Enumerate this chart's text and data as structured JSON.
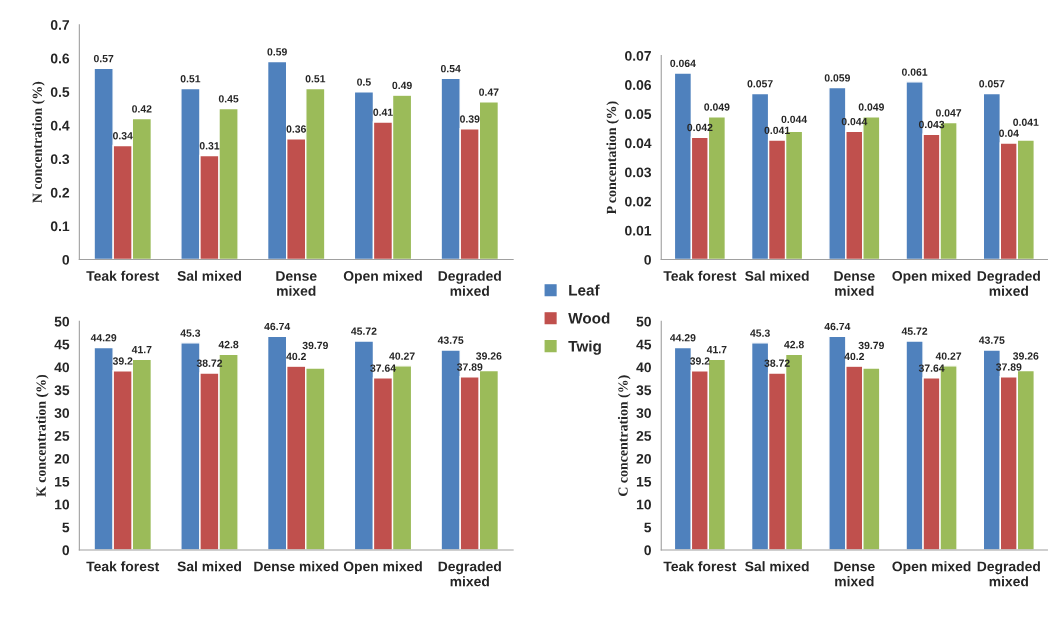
{
  "chart_data": [
    {
      "type": "bar",
      "ylabel": "N concentration (%)",
      "categories": [
        "Teak forest",
        "Sal mixed",
        "Dense\nmixed",
        "Open mixed",
        "Degraded\nmixed"
      ],
      "series": [
        {
          "name": "Leaf",
          "color": "#4f81bd",
          "values": [
            0.57,
            0.51,
            0.59,
            0.5,
            0.54
          ]
        },
        {
          "name": "Wood",
          "color": "#c0504d",
          "values": [
            0.34,
            0.31,
            0.36,
            0.41,
            0.39
          ]
        },
        {
          "name": "Twig",
          "color": "#9bbb59",
          "values": [
            0.42,
            0.45,
            0.51,
            0.49,
            0.47
          ]
        }
      ],
      "ylim": [
        0,
        0.7
      ],
      "yticks": [
        0,
        0.1,
        0.2,
        0.3,
        0.4,
        0.5,
        0.6,
        0.7
      ],
      "data_labels": true,
      "grid": false,
      "legend": "bottom right"
    },
    {
      "type": "bar",
      "ylabel": "P concentation (%)",
      "categories": [
        "Teak forest",
        "Sal mixed",
        "Dense\nmixed",
        "Open mixed",
        "Degraded\nmixed"
      ],
      "series": [
        {
          "color": "#4f81bd",
          "values": [
            0.064,
            0.057,
            0.059,
            0.061,
            0.057
          ]
        },
        {
          "color": "#c0504d",
          "values": [
            0.042,
            0.041,
            0.044,
            0.043,
            0.04
          ]
        },
        {
          "color": "#9bbb59",
          "values": [
            0.049,
            0.044,
            0.049,
            0.047,
            0.041
          ]
        }
      ],
      "ylim": [
        0,
        0.07
      ],
      "yticks": [
        0,
        0.01,
        0.02,
        0.03,
        0.04,
        0.05,
        0.06,
        0.07
      ],
      "data_labels": true,
      "grid": false
    },
    {
      "type": "bar",
      "ylabel": "K concentration (%)",
      "categories": [
        "Teak forest",
        "Sal mixed",
        "Dense mixed",
        "Open mixed",
        "Degraded\nmixed"
      ],
      "series": [
        {
          "color": "#4f81bd",
          "values": [
            44.29,
            45.3,
            46.74,
            45.72,
            43.75
          ]
        },
        {
          "color": "#c0504d",
          "values": [
            39.2,
            38.72,
            40.2,
            37.64,
            37.89
          ]
        },
        {
          "color": "#9bbb59",
          "values": [
            41.7,
            42.8,
            39.79,
            40.27,
            39.26
          ]
        }
      ],
      "ylim": [
        0,
        50
      ],
      "yticks": [
        0,
        5,
        10,
        15,
        20,
        25,
        30,
        35,
        40,
        45,
        50
      ],
      "data_labels": true,
      "grid": false
    },
    {
      "type": "bar",
      "ylabel": "C concentration (%)",
      "categories": [
        "Teak forest",
        "Sal mixed",
        "Dense\nmixed",
        "Open mixed",
        "Degraded\nmixed"
      ],
      "series": [
        {
          "color": "#4f81bd",
          "values": [
            44.29,
            45.3,
            46.74,
            45.72,
            43.75
          ]
        },
        {
          "color": "#c0504d",
          "values": [
            39.2,
            38.72,
            40.2,
            37.64,
            37.89
          ]
        },
        {
          "color": "#9bbb59",
          "values": [
            41.7,
            42.8,
            39.79,
            40.27,
            39.26
          ]
        }
      ],
      "ylim": [
        0,
        50
      ],
      "yticks": [
        0,
        5,
        10,
        15,
        20,
        25,
        30,
        35,
        40,
        45,
        50
      ],
      "data_labels": true,
      "grid": false
    }
  ]
}
